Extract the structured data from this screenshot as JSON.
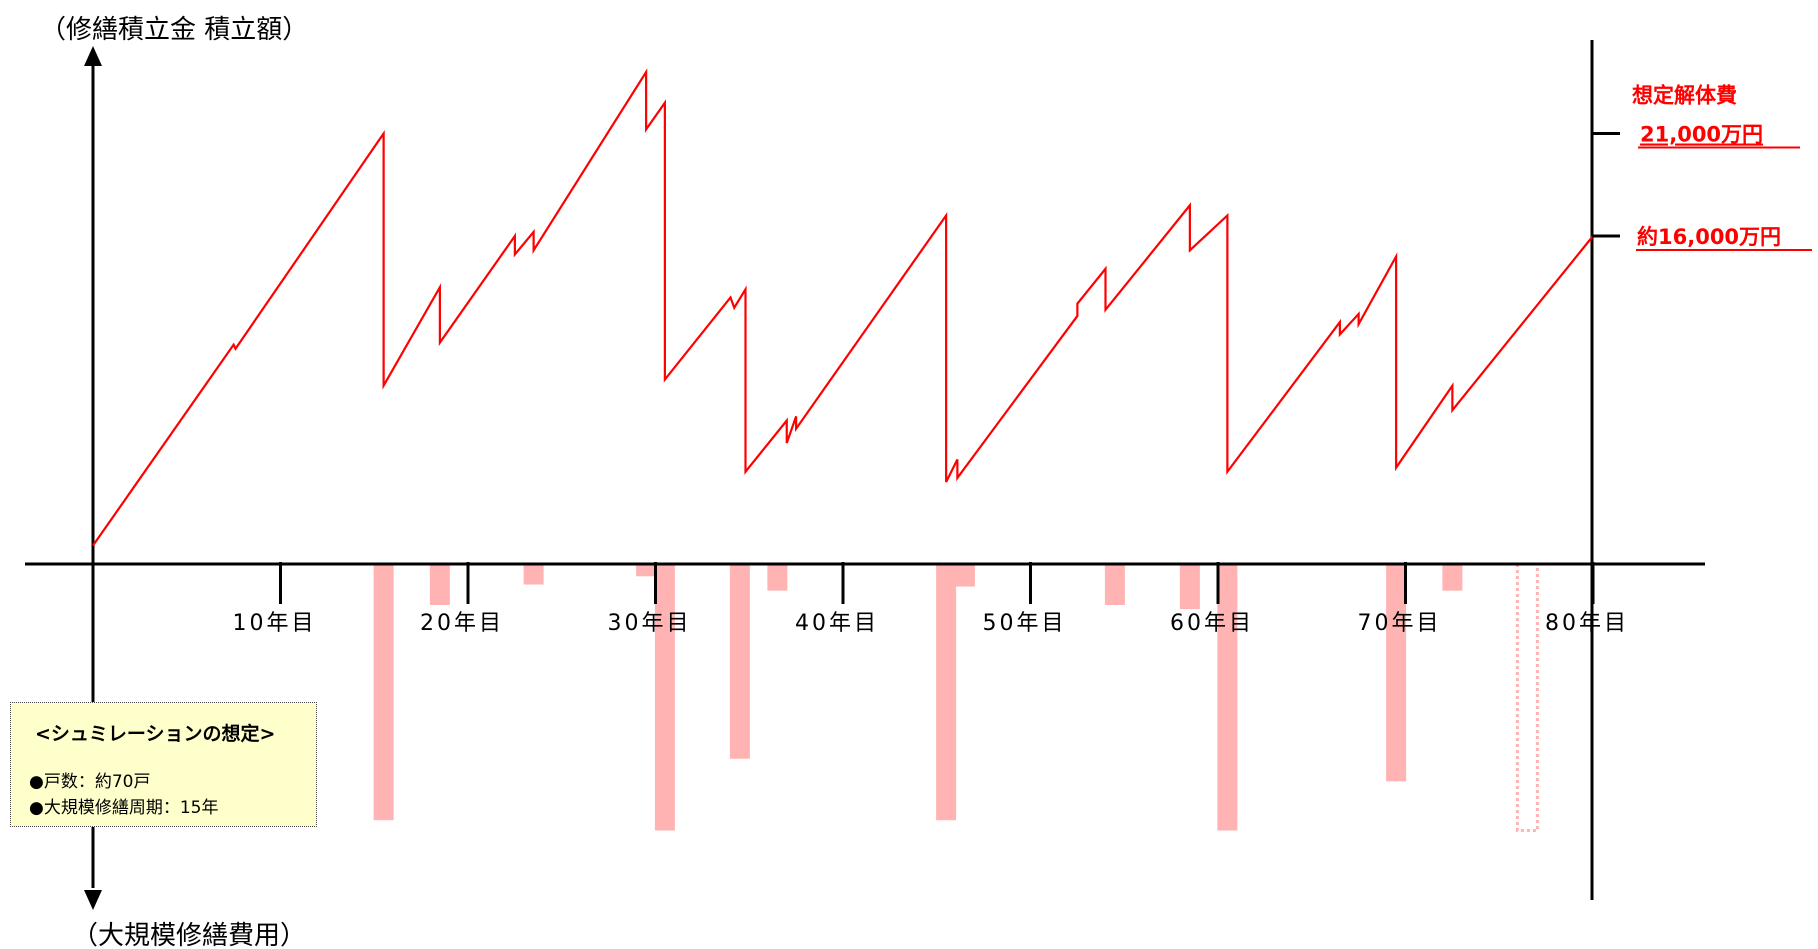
{
  "chart_data": {
    "type": "line",
    "y_axis_label_top": "（修繕積立金 積立額）",
    "y_axis_label_bottom": "（大規模修繕費用）",
    "x_ticks": [
      {
        "year": 10,
        "label": "10年目"
      },
      {
        "year": 20,
        "label": "20年目"
      },
      {
        "year": 30,
        "label": "30年目"
      },
      {
        "year": 40,
        "label": "40年目"
      },
      {
        "year": 50,
        "label": "50年目"
      },
      {
        "year": 60,
        "label": "60年目"
      },
      {
        "year": 70,
        "label": "70年目"
      },
      {
        "year": 80,
        "label": "80年目"
      }
    ],
    "xlim": [
      0,
      80
    ],
    "ylim": [
      -24000,
      25000
    ],
    "series": [
      {
        "color": "#ff0000",
        "x": [
          0,
          7.5,
          7.6,
          15.5,
          15.5,
          18.5,
          18.5,
          22.5,
          22.5,
          23.5,
          23.5,
          29.5,
          29.5,
          30.5,
          30.5,
          34.0,
          34.2,
          34.8,
          34.8,
          37.0,
          37.0,
          37.5,
          37.5,
          45.5,
          45.5,
          46.1,
          46.1,
          52.5,
          52.5,
          54.0,
          54.0,
          58.5,
          58.5,
          60.5,
          60.5,
          66.5,
          66.5,
          67.5,
          67.5,
          69.5,
          69.5,
          72.5,
          72.5,
          80.0
        ],
        "y": [
          900,
          10700,
          10500,
          21000,
          8700,
          13500,
          10800,
          16000,
          15100,
          16200,
          15300,
          24000,
          21200,
          22500,
          9000,
          13000,
          12500,
          13400,
          4500,
          7000,
          5900,
          7200,
          6600,
          17000,
          4000,
          5100,
          4200,
          12100,
          12700,
          14400,
          12400,
          17500,
          15300,
          17000,
          4500,
          11800,
          11200,
          12200,
          11700,
          15000,
          4700,
          8700,
          7500,
          16000
        ]
      }
    ],
    "bars": [
      {
        "x": 15.5,
        "value": -12500
      },
      {
        "x": 18.5,
        "value": -2000
      },
      {
        "x": 23.5,
        "value": -1000
      },
      {
        "x": 29.5,
        "value": -600
      },
      {
        "x": 30.5,
        "value": -13000
      },
      {
        "x": 34.5,
        "value": -9500
      },
      {
        "x": 36.5,
        "value": -1300
      },
      {
        "x": 45.5,
        "value": -12500
      },
      {
        "x": 46.5,
        "value": -1100
      },
      {
        "x": 54.5,
        "value": -2000
      },
      {
        "x": 58.5,
        "value": -2200
      },
      {
        "x": 60.5,
        "value": -13000
      },
      {
        "x": 69.5,
        "value": -10600
      },
      {
        "x": 72.5,
        "value": -1300
      },
      {
        "x": 76.5,
        "value": -13000,
        "style": "dotted"
      }
    ],
    "annotations": [
      {
        "y": 21000,
        "line1": "想定解体費",
        "line2": "21,000万円"
      },
      {
        "y": 16000,
        "line1": "約16,000万円"
      }
    ]
  },
  "note_box": {
    "title": "<シュミレーションの想定>",
    "items": [
      "●戸数：約70戸",
      "●大規模修繕周期：15年"
    ]
  },
  "colors": {
    "line": "#ff0000",
    "bar": "#ffb3b3",
    "annotation": "#ff0000",
    "note_bg": "#ffffcc"
  }
}
